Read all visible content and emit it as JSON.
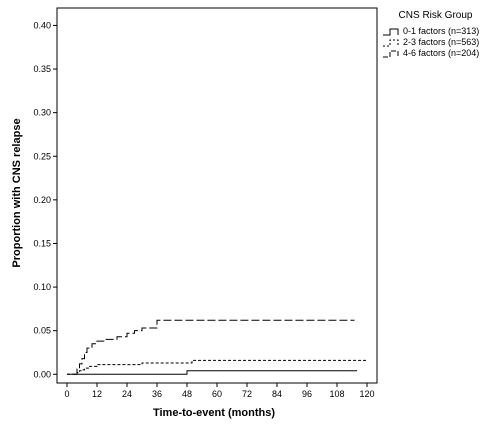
{
  "chart_data": {
    "type": "line",
    "title": "",
    "xlabel": "Time-to-event (months)",
    "ylabel": "Proportion with CNS relapse",
    "xlim": [
      -4,
      124
    ],
    "ylim": [
      -0.01,
      0.42
    ],
    "x_ticks": [
      0,
      12,
      24,
      36,
      48,
      60,
      72,
      84,
      96,
      108,
      120
    ],
    "y_ticks": [
      0.0,
      0.05,
      0.1,
      0.15,
      0.2,
      0.25,
      0.3,
      0.35,
      0.4
    ],
    "y_tick_labels": [
      "0.00",
      "0.05",
      "0.10",
      "0.15",
      "0.20",
      "0.25",
      "0.30",
      "0.35",
      "0.40"
    ],
    "grid": false,
    "legend_title": "CNS Risk Group",
    "legend_position": "outside-right-top",
    "series": [
      {
        "name": "0-1 factors (n=313)",
        "style": "solid",
        "step": true,
        "x": [
          0,
          48,
          48,
          116
        ],
        "y": [
          0.0,
          0.0,
          0.004,
          0.004
        ]
      },
      {
        "name": "2-3 factors (n=563)",
        "style": "short-dash",
        "step": true,
        "x": [
          0,
          4,
          5,
          6,
          7,
          9,
          12,
          30,
          50,
          120
        ],
        "y": [
          0.0,
          0.002,
          0.004,
          0.005,
          0.007,
          0.009,
          0.011,
          0.013,
          0.016,
          0.016
        ]
      },
      {
        "name": "4-6 factors (n=204)",
        "style": "long-dash",
        "step": true,
        "x": [
          3,
          4,
          5,
          6,
          7,
          8,
          10,
          12,
          15,
          20,
          24,
          27,
          30,
          36,
          115
        ],
        "y": [
          0.0,
          0.006,
          0.012,
          0.018,
          0.025,
          0.03,
          0.035,
          0.038,
          0.04,
          0.043,
          0.047,
          0.05,
          0.053,
          0.062,
          0.062
        ]
      }
    ]
  }
}
